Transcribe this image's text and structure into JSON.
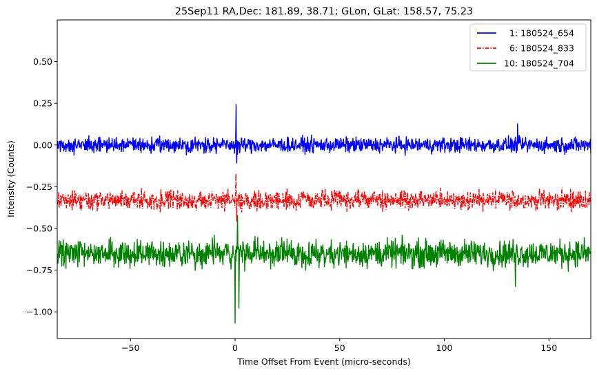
{
  "chart_data": {
    "type": "line",
    "title": "25Sep11 RA,Dec:  181.89,  38.71; GLon, GLat:  158.57,  75.23",
    "xlabel": "Time Offset From Event (micro-seconds)",
    "ylabel": "Intensity (Counts)",
    "xlim": [
      -85,
      170
    ],
    "ylim": [
      -1.16,
      0.75
    ],
    "xticks": [
      -50,
      0,
      50,
      100,
      150
    ],
    "xtick_labels": [
      "−50",
      "0",
      "50",
      "100",
      "150"
    ],
    "yticks": [
      0.5,
      0.25,
      0.0,
      -0.25,
      -0.5,
      -0.75,
      -1.0
    ],
    "ytick_labels": [
      "0.50",
      "0.25",
      "0.00",
      "−0.25",
      "−0.50",
      "−0.75",
      "−1.00"
    ],
    "legend_position": "top-right",
    "series": [
      {
        "name": "1: 180524_654",
        "legend_label": "  1: 180524_654",
        "color": "#0000ff",
        "linestyle": "solid",
        "baseline": 0.0,
        "noise_amplitude": 0.04,
        "range": [
          -0.1,
          0.13
        ],
        "features": [
          {
            "x": 0.5,
            "y": 0.245
          },
          {
            "x": 0.8,
            "y": -0.11
          },
          {
            "x": 135,
            "y": 0.13
          }
        ]
      },
      {
        "name": "6: 180524_833",
        "legend_label": "  6: 180524_833",
        "color": "#ff0000",
        "linestyle": "dashdot",
        "baseline": -0.33,
        "noise_amplitude": 0.05,
        "range": [
          -0.46,
          -0.18
        ],
        "features": [
          {
            "x": 0.4,
            "y": -0.17
          },
          {
            "x": 0.8,
            "y": -0.46
          }
        ]
      },
      {
        "name": "10: 180524_704",
        "legend_label": "10: 180524_704",
        "color": "#008000",
        "linestyle": "solid",
        "baseline": -0.65,
        "noise_amplitude": 0.07,
        "range": [
          -0.82,
          -0.48
        ],
        "features": [
          {
            "x": 0.0,
            "y": -1.07
          },
          {
            "x": 1.2,
            "y": -0.42
          },
          {
            "x": 1.8,
            "y": -0.98
          },
          {
            "x": 134,
            "y": -0.85
          }
        ]
      }
    ]
  }
}
